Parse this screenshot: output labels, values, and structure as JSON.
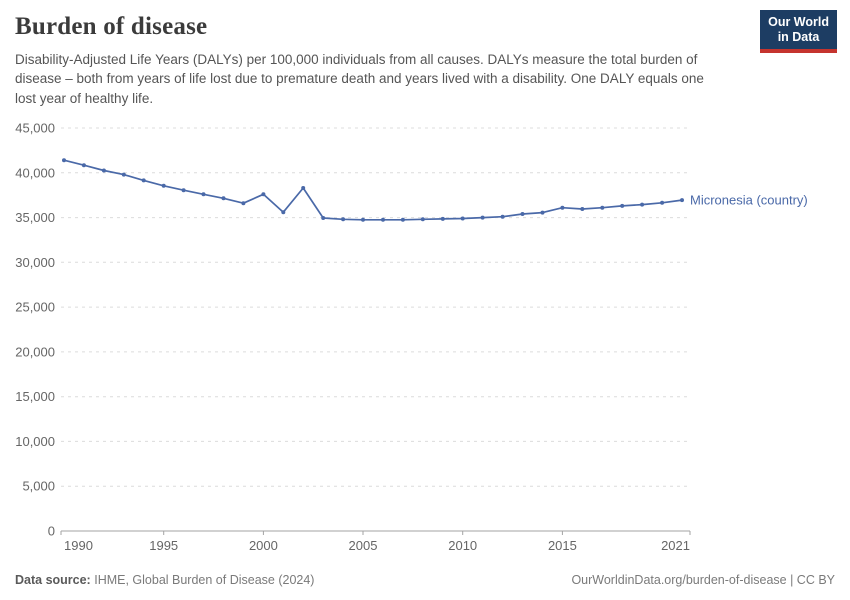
{
  "header": {
    "title": "Burden of disease",
    "subtitle": "Disability-Adjusted Life Years (DALYs) per 100,000 individuals from all causes. DALYs measure the total burden of disease – both from years of life lost due to premature death and years lived with a disability. One DALY equals one lost year of healthy life.",
    "logo": {
      "line1": "Our World",
      "line2": "in Data",
      "bg_color": "#1d3d63",
      "accent_color": "#c5342e"
    }
  },
  "chart_data": {
    "type": "line",
    "title": "Burden of disease",
    "xlabel": "",
    "ylabel": "DALYs per 100,000 individuals",
    "ylim": [
      0,
      45000
    ],
    "grid": "horizontal-dashed",
    "legend_position": "end-of-line",
    "x": [
      1990,
      1991,
      1992,
      1993,
      1994,
      1995,
      1996,
      1997,
      1998,
      1999,
      2000,
      2001,
      2002,
      2003,
      2004,
      2005,
      2006,
      2007,
      2008,
      2009,
      2010,
      2011,
      2012,
      2013,
      2014,
      2015,
      2016,
      2017,
      2018,
      2019,
      2020,
      2021
    ],
    "series": [
      {
        "name": "Micronesia (country)",
        "color": "#4a69a8",
        "values": [
          41400,
          40850,
          40250,
          39800,
          39150,
          38550,
          38050,
          37600,
          37150,
          36600,
          37600,
          35600,
          38300,
          34950,
          34800,
          34750,
          34750,
          34750,
          34800,
          34850,
          34900,
          35000,
          35100,
          35400,
          35550,
          36100,
          35950,
          36100,
          36300,
          36450,
          36650,
          36950
        ]
      }
    ],
    "yticks": [
      0,
      5000,
      10000,
      15000,
      20000,
      25000,
      30000,
      35000,
      40000,
      45000
    ],
    "ytick_labels": [
      "0",
      "5,000",
      "10,000",
      "15,000",
      "20,000",
      "25,000",
      "30,000",
      "35,000",
      "40,000",
      "45,000"
    ],
    "xticks": [
      1990,
      1995,
      2000,
      2005,
      2010,
      2015,
      2021
    ]
  },
  "footer": {
    "datasource_label": "Data source:",
    "datasource_value": "IHME, Global Burden of Disease (2024)",
    "link": "OurWorldinData.org/burden-of-disease | CC BY"
  }
}
